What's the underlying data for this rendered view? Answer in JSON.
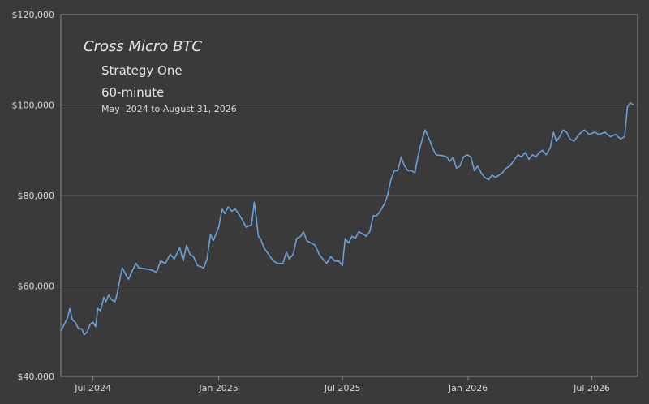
{
  "chart_data": {
    "type": "line",
    "title": "Cross Micro BTC",
    "subtitle": "Strategy One",
    "timeframe": "60-minute",
    "date_range": "May  2024 to August 31, 2026",
    "xlabel": "",
    "ylabel": "",
    "ylim": [
      40000,
      120000
    ],
    "yticks": [
      40000,
      60000,
      80000,
      100000,
      120000
    ],
    "ytick_labels": [
      "$40,000",
      "$60,000",
      "$80,000",
      "$100,000",
      "$120,000"
    ],
    "xlim": [
      "2024-05-15",
      "2026-09-06"
    ],
    "xticks": [
      "2024-07-01",
      "2025-01-01",
      "2025-07-01",
      "2026-01-01",
      "2026-07-01"
    ],
    "xtick_labels": [
      "Jul 2024",
      "Jan 2025",
      "Jul 2025",
      "Jan 2026",
      "Jul 2026"
    ],
    "grid": "y",
    "colors": {
      "background": "#3a3a3a",
      "line": "#6a9fd8",
      "grid": "#5c5c5c",
      "axis": "#8a8a8a"
    },
    "series": [
      {
        "points": [
          [
            "2024-05-15",
            50000
          ],
          [
            "2024-05-20",
            51500
          ],
          [
            "2024-05-25",
            53000
          ],
          [
            "2024-05-28",
            55000
          ],
          [
            "2024-06-01",
            52500
          ],
          [
            "2024-06-05",
            52000
          ],
          [
            "2024-06-10",
            50500
          ],
          [
            "2024-06-15",
            50500
          ],
          [
            "2024-06-18",
            49200
          ],
          [
            "2024-06-22",
            49700
          ],
          [
            "2024-06-27",
            51500
          ],
          [
            "2024-07-01",
            52000
          ],
          [
            "2024-07-05",
            51000
          ],
          [
            "2024-07-08",
            55000
          ],
          [
            "2024-07-12",
            54500
          ],
          [
            "2024-07-17",
            57500
          ],
          [
            "2024-07-20",
            56500
          ],
          [
            "2024-07-24",
            58000
          ],
          [
            "2024-07-28",
            57000
          ],
          [
            "2024-08-02",
            56500
          ],
          [
            "2024-08-05",
            58000
          ],
          [
            "2024-08-10",
            62000
          ],
          [
            "2024-08-13",
            64000
          ],
          [
            "2024-08-18",
            62500
          ],
          [
            "2024-08-22",
            61500
          ],
          [
            "2024-08-28",
            63500
          ],
          [
            "2024-09-02",
            65000
          ],
          [
            "2024-09-06",
            64000
          ],
          [
            "2024-09-15",
            63800
          ],
          [
            "2024-09-25",
            63500
          ],
          [
            "2024-10-02",
            63000
          ],
          [
            "2024-10-08",
            65500
          ],
          [
            "2024-10-15",
            65000
          ],
          [
            "2024-10-22",
            67000
          ],
          [
            "2024-10-28",
            66000
          ],
          [
            "2024-11-05",
            68500
          ],
          [
            "2024-11-10",
            65500
          ],
          [
            "2024-11-15",
            69000
          ],
          [
            "2024-11-20",
            67000
          ],
          [
            "2024-11-25",
            66500
          ],
          [
            "2024-12-01",
            64500
          ],
          [
            "2024-12-10",
            64000
          ],
          [
            "2024-12-15",
            66000
          ],
          [
            "2024-12-20",
            71500
          ],
          [
            "2024-12-24",
            70000
          ],
          [
            "2025-01-01",
            73000
          ],
          [
            "2025-01-06",
            77000
          ],
          [
            "2025-01-10",
            76000
          ],
          [
            "2025-01-15",
            77500
          ],
          [
            "2025-01-20",
            76500
          ],
          [
            "2025-01-25",
            77000
          ],
          [
            "2025-01-30",
            76000
          ],
          [
            "2025-02-05",
            74500
          ],
          [
            "2025-02-10",
            73000
          ],
          [
            "2025-02-18",
            73500
          ],
          [
            "2025-02-22",
            78500
          ],
          [
            "2025-02-25",
            75000
          ],
          [
            "2025-02-28",
            71000
          ],
          [
            "2025-03-03",
            70500
          ],
          [
            "2025-03-08",
            68500
          ],
          [
            "2025-03-15",
            67000
          ],
          [
            "2025-03-22",
            65500
          ],
          [
            "2025-03-28",
            65000
          ],
          [
            "2025-04-05",
            65000
          ],
          [
            "2025-04-10",
            67500
          ],
          [
            "2025-04-14",
            66000
          ],
          [
            "2025-04-20",
            67000
          ],
          [
            "2025-04-25",
            70500
          ],
          [
            "2025-05-01",
            71000
          ],
          [
            "2025-05-05",
            72000
          ],
          [
            "2025-05-10",
            70000
          ],
          [
            "2025-05-16",
            69500
          ],
          [
            "2025-05-22",
            69000
          ],
          [
            "2025-05-28",
            67000
          ],
          [
            "2025-06-02",
            66000
          ],
          [
            "2025-06-08",
            65000
          ],
          [
            "2025-06-14",
            66500
          ],
          [
            "2025-06-20",
            65500
          ],
          [
            "2025-06-26",
            65500
          ],
          [
            "2025-07-01",
            64500
          ],
          [
            "2025-07-05",
            70500
          ],
          [
            "2025-07-10",
            69500
          ],
          [
            "2025-07-15",
            71000
          ],
          [
            "2025-07-20",
            70500
          ],
          [
            "2025-07-25",
            72000
          ],
          [
            "2025-07-31",
            71500
          ],
          [
            "2025-08-05",
            71000
          ],
          [
            "2025-08-10",
            72000
          ],
          [
            "2025-08-15",
            75500
          ],
          [
            "2025-08-20",
            75500
          ],
          [
            "2025-08-25",
            76500
          ],
          [
            "2025-08-31",
            78000
          ],
          [
            "2025-09-05",
            80000
          ],
          [
            "2025-09-10",
            83500
          ],
          [
            "2025-09-15",
            85500
          ],
          [
            "2025-09-20",
            85500
          ],
          [
            "2025-09-25",
            88500
          ],
          [
            "2025-09-30",
            86500
          ],
          [
            "2025-10-05",
            85500
          ],
          [
            "2025-10-10",
            85500
          ],
          [
            "2025-10-15",
            85000
          ],
          [
            "2025-10-20",
            89000
          ],
          [
            "2025-10-25",
            92000
          ],
          [
            "2025-10-30",
            94500
          ],
          [
            "2025-11-05",
            92500
          ],
          [
            "2025-11-10",
            90500
          ],
          [
            "2025-11-15",
            89000
          ],
          [
            "2025-11-25",
            88800
          ],
          [
            "2025-12-01",
            88500
          ],
          [
            "2025-12-05",
            87500
          ],
          [
            "2025-12-10",
            88500
          ],
          [
            "2025-12-15",
            86000
          ],
          [
            "2025-12-20",
            86500
          ],
          [
            "2025-12-25",
            88500
          ],
          [
            "2025-12-31",
            89000
          ],
          [
            "2026-01-05",
            88500
          ],
          [
            "2026-01-10",
            85500
          ],
          [
            "2026-01-15",
            86500
          ],
          [
            "2026-01-20",
            85000
          ],
          [
            "2026-01-25",
            84000
          ],
          [
            "2026-01-31",
            83500
          ],
          [
            "2026-02-05",
            84500
          ],
          [
            "2026-02-10",
            84000
          ],
          [
            "2026-02-15",
            84500
          ],
          [
            "2026-02-20",
            85000
          ],
          [
            "2026-02-25",
            86000
          ],
          [
            "2026-03-03",
            86500
          ],
          [
            "2026-03-10",
            88000
          ],
          [
            "2026-03-15",
            89000
          ],
          [
            "2026-03-20",
            88500
          ],
          [
            "2026-03-25",
            89500
          ],
          [
            "2026-03-31",
            88000
          ],
          [
            "2026-04-05",
            89000
          ],
          [
            "2026-04-10",
            88500
          ],
          [
            "2026-04-15",
            89500
          ],
          [
            "2026-04-20",
            90000
          ],
          [
            "2026-04-25",
            89000
          ],
          [
            "2026-05-01",
            90500
          ],
          [
            "2026-05-06",
            94000
          ],
          [
            "2026-05-10",
            92000
          ],
          [
            "2026-05-15",
            93000
          ],
          [
            "2026-05-20",
            94500
          ],
          [
            "2026-05-25",
            94000
          ],
          [
            "2026-05-30",
            92500
          ],
          [
            "2026-06-05",
            92000
          ],
          [
            "2026-06-12",
            93500
          ],
          [
            "2026-06-20",
            94500
          ],
          [
            "2026-06-27",
            93500
          ],
          [
            "2026-07-05",
            94000
          ],
          [
            "2026-07-12",
            93500
          ],
          [
            "2026-07-20",
            94000
          ],
          [
            "2026-07-28",
            93000
          ],
          [
            "2026-08-05",
            93500
          ],
          [
            "2026-08-12",
            92500
          ],
          [
            "2026-08-18",
            93000
          ],
          [
            "2026-08-22",
            99500
          ],
          [
            "2026-08-26",
            100500
          ],
          [
            "2026-08-31",
            100000
          ]
        ]
      }
    ]
  }
}
